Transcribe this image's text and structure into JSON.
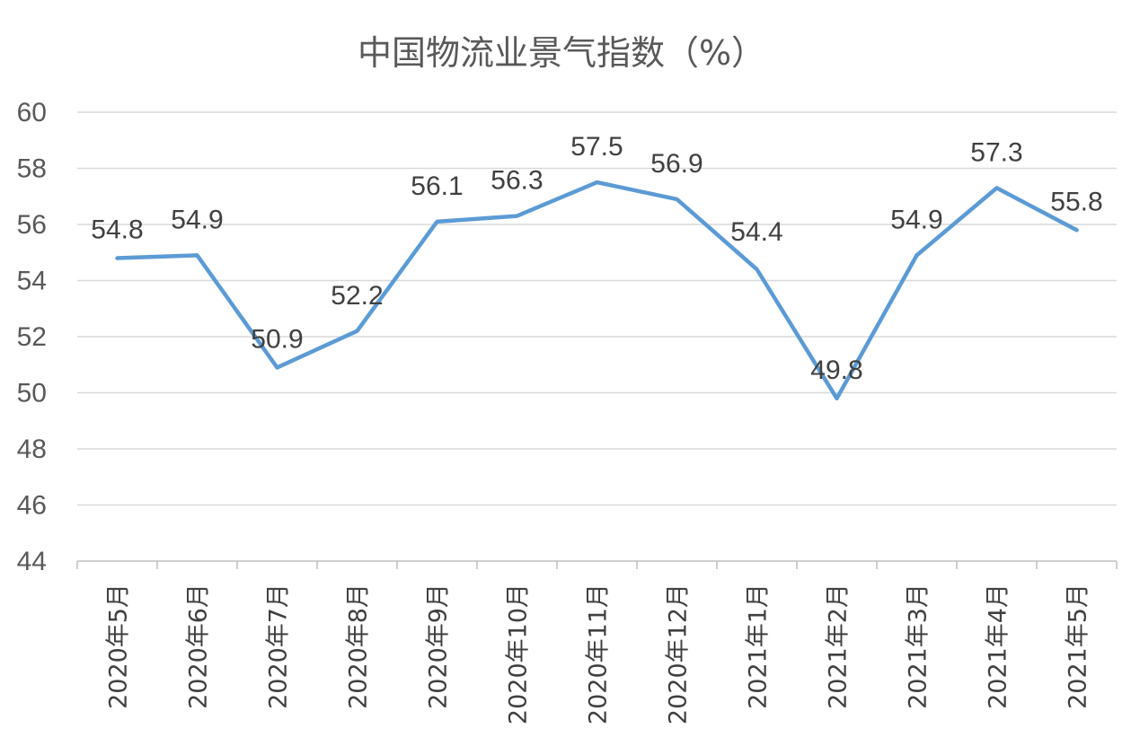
{
  "chart_data": {
    "type": "line",
    "title": "中国物流业景气指数（%）",
    "categories": [
      "2020年5月",
      "2020年6月",
      "2020年7月",
      "2020年8月",
      "2020年9月",
      "2020年10月",
      "2020年11月",
      "2020年12月",
      "2021年1月",
      "2021年2月",
      "2021年3月",
      "2021年4月",
      "2021年5月"
    ],
    "series": [
      {
        "values": [
          54.8,
          54.9,
          50.9,
          52.2,
          56.1,
          56.3,
          57.5,
          56.9,
          54.4,
          49.8,
          54.9,
          57.3,
          55.8
        ]
      }
    ],
    "ylim": [
      44,
      60
    ],
    "yticks": [
      44,
      46,
      48,
      50,
      52,
      54,
      56,
      58,
      60
    ],
    "data_labels": [
      "54.8",
      "54.9",
      "50.9",
      "52.2",
      "56.1",
      "56.3",
      "57.5",
      "56.9",
      "54.4",
      "49.8",
      "54.9",
      "57.3",
      "55.8"
    ],
    "grid": true,
    "legend": "none",
    "colors": {
      "series": "#5b9bd5",
      "grid": "#d9d9d9",
      "text": "#595959"
    }
  }
}
